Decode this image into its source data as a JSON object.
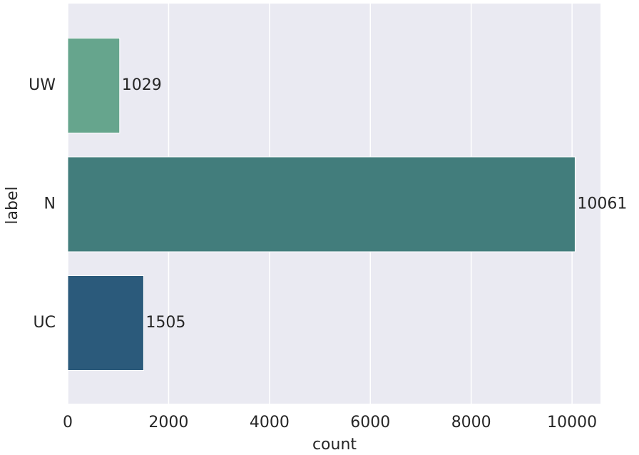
{
  "chart_data": {
    "type": "bar",
    "orientation": "horizontal",
    "categories": [
      "UW",
      "N",
      "UC"
    ],
    "values": [
      1029,
      10061,
      1505
    ],
    "colors": [
      "#66a58d",
      "#427d7c",
      "#2b5a7b"
    ],
    "xlabel": "count",
    "ylabel": "label",
    "xlim": [
      0,
      10564
    ],
    "xticks": [
      0,
      2000,
      4000,
      6000,
      8000,
      10000
    ],
    "grid": true
  }
}
